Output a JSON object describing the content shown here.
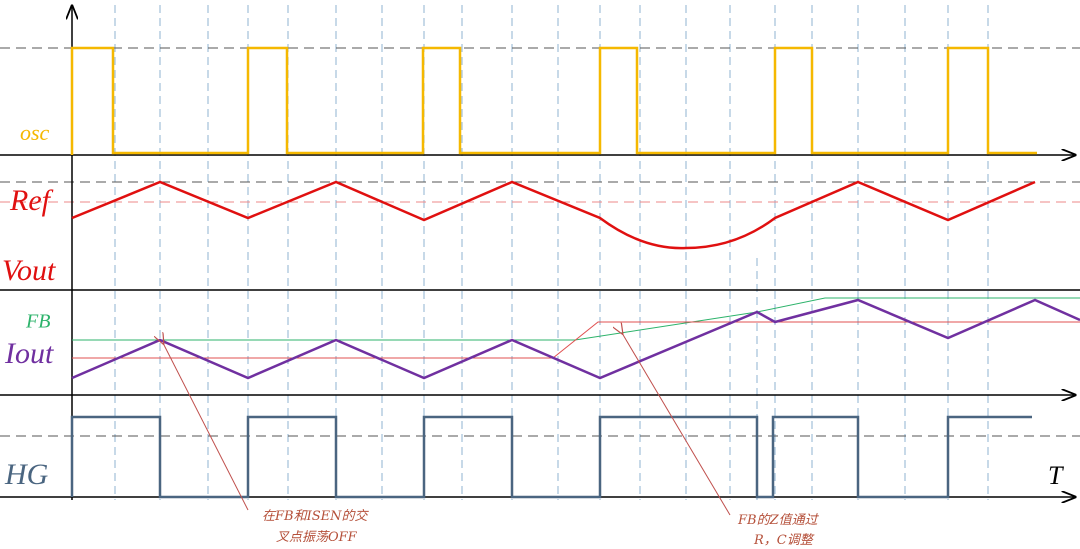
{
  "labels": {
    "osc": "osc",
    "ref": "Ref",
    "vout": "Vout",
    "fb": "FB",
    "iout": "Iout",
    "hg": "HG",
    "time": "T"
  },
  "annotations": [
    {
      "lines": [
        "在FB和ISEN的交",
        "叉点振荡OFF"
      ]
    },
    {
      "lines": [
        "FB的Z值通过",
        "R，C调整"
      ]
    }
  ]
}
